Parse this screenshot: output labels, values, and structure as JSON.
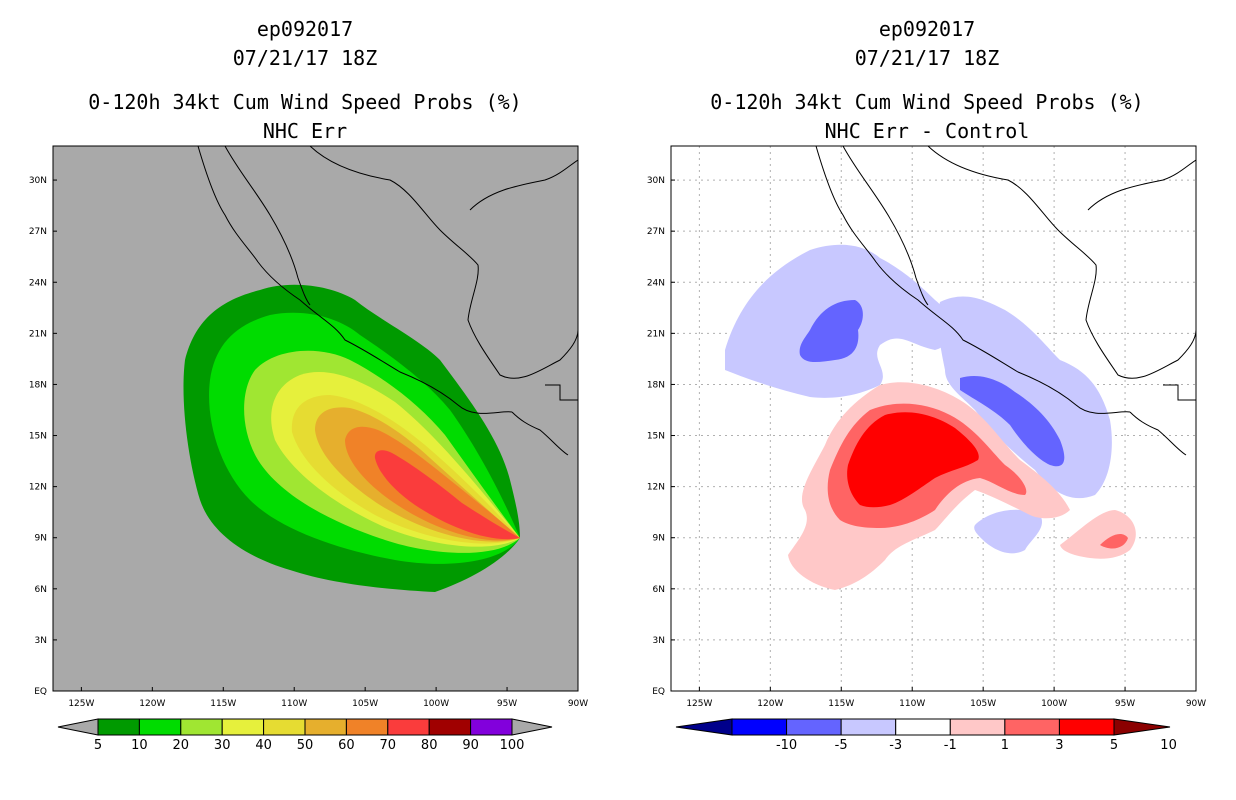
{
  "panels": [
    {
      "storm_id": "ep092017",
      "datetime": "07/21/17 18Z",
      "product": "0-120h 34kt Cum Wind Speed Probs (%)",
      "subtitle": "NHC Err",
      "background": "#a9a9a9"
    },
    {
      "storm_id": "ep092017",
      "datetime": "07/21/17 18Z",
      "product": "0-120h 34kt Cum Wind Speed Probs (%)",
      "subtitle": "NHC Err - Control",
      "background": "#ffffff"
    }
  ],
  "chart_data": [
    {
      "type": "heatmap",
      "title": "0-120h 34kt Cum Wind Speed Probs (%) NHC Err",
      "x_ticks": [
        "125W",
        "120W",
        "115W",
        "110W",
        "105W",
        "100W",
        "95W",
        "90W"
      ],
      "y_ticks": [
        "EQ",
        "3N",
        "6N",
        "9N",
        "12N",
        "15N",
        "18N",
        "21N",
        "24N",
        "27N",
        "30N"
      ],
      "xlim": [
        -127,
        -90
      ],
      "ylim": [
        0,
        32
      ],
      "colorbar": {
        "levels": [
          "5",
          "10",
          "20",
          "30",
          "40",
          "50",
          "60",
          "70",
          "80",
          "90",
          "100"
        ],
        "colors": [
          "#009a00",
          "#00dc00",
          "#a0e632",
          "#e6f03c",
          "#e6dc32",
          "#e6af2d",
          "#f08228",
          "#fa3c3c",
          "#a00000",
          "#8200dc"
        ]
      }
    },
    {
      "type": "heatmap",
      "title": "0-120h 34kt Cum Wind Speed Probs (%) NHC Err - Control",
      "x_ticks": [
        "125W",
        "120W",
        "115W",
        "110W",
        "105W",
        "100W",
        "95W",
        "90W"
      ],
      "y_ticks": [
        "EQ",
        "3N",
        "6N",
        "9N",
        "12N",
        "15N",
        "18N",
        "21N",
        "24N",
        "27N",
        "30N"
      ],
      "xlim": [
        -127,
        -90
      ],
      "ylim": [
        0,
        32
      ],
      "colorbar": {
        "levels": [
          "-10",
          "-5",
          "-3",
          "-1",
          "1",
          "3",
          "5",
          "10"
        ],
        "colors": [
          "#00008b",
          "#0000ff",
          "#6464ff",
          "#c8c8ff",
          "#ffffff",
          "#ffc8c8",
          "#ff6464",
          "#ff0000",
          "#8b0000"
        ]
      }
    }
  ]
}
